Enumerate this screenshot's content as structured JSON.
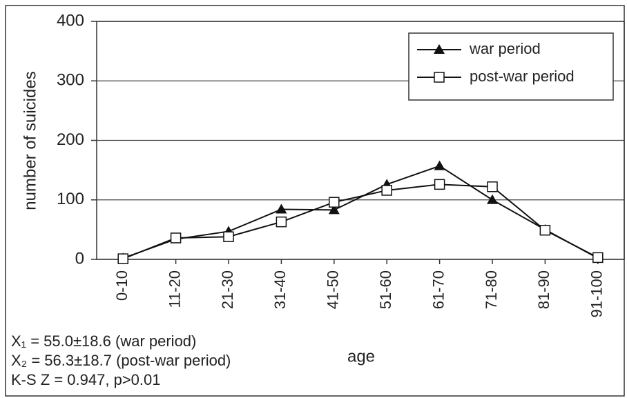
{
  "chart_data": {
    "type": "line",
    "ylabel": "number of suicides",
    "xlabel": "age",
    "categories": [
      "0-10",
      "11-20",
      "21-30",
      "31-40",
      "41-50",
      "51-60",
      "61-70",
      "71-80",
      "81-90",
      "91-100"
    ],
    "series": [
      {
        "name": "war period",
        "color": "#111111",
        "marker": "triangle",
        "values": [
          2,
          34,
          47,
          84,
          83,
          126,
          157,
          100,
          50,
          2
        ]
      },
      {
        "name": "post-war period",
        "color": "#111111",
        "marker": "square",
        "values": [
          1,
          36,
          38,
          63,
          96,
          116,
          126,
          122,
          49,
          3
        ]
      }
    ],
    "ylim": [
      0,
      400
    ],
    "yticks": [
      0,
      100,
      200,
      300,
      400
    ],
    "grid": true,
    "legend": "upper right",
    "annotations": [
      "X₁ = 55.0±18.6 (war period)",
      "X₂ = 56.3±18.7 (post-war period)",
      "K-S Z = 0.947, p>0.01"
    ]
  }
}
